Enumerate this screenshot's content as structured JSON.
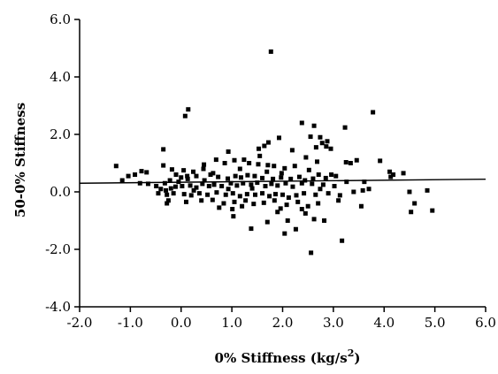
{
  "chart_data": {
    "type": "scatter",
    "title": "",
    "xlabel": "0% Stiffness (kg/s",
    "xlabel_superscript": "2",
    "xlabel_suffix": ")",
    "ylabel": "50-0% Stiffness",
    "xlim": [
      -2.0,
      6.0
    ],
    "ylim": [
      -4.0,
      6.0
    ],
    "x_ticks": [
      -2.0,
      -1.0,
      0.0,
      1.0,
      2.0,
      3.0,
      4.0,
      5.0,
      6.0
    ],
    "x_tick_labels": [
      "-2.0",
      "-1.0",
      "0.0",
      "1.0",
      "2.0",
      "3.0",
      "4.0",
      "5.0",
      "6.0"
    ],
    "y_ticks": [
      -4.0,
      -2.0,
      0.0,
      2.0,
      4.0,
      6.0
    ],
    "y_tick_labels": [
      "-4.0",
      "-2.0",
      "0.0",
      "2.0",
      "4.0",
      "6.0"
    ],
    "grid": false,
    "legend": "none",
    "marker": "square",
    "color": "#000000",
    "trend_line": {
      "x": [
        -2.0,
        6.0
      ],
      "y": [
        0.3,
        0.44
      ]
    },
    "points": [
      [
        1.77,
        4.88
      ],
      [
        0.14,
        2.87
      ],
      [
        0.08,
        2.64
      ],
      [
        3.78,
        2.77
      ],
      [
        2.38,
        2.4
      ],
      [
        3.23,
        2.24
      ],
      [
        2.62,
        2.3
      ],
      [
        1.93,
        1.88
      ],
      [
        2.74,
        1.9
      ],
      [
        2.55,
        1.92
      ],
      [
        2.88,
        1.76
      ],
      [
        2.78,
        1.7
      ],
      [
        2.86,
        1.58
      ],
      [
        2.66,
        1.55
      ],
      [
        -0.35,
        1.48
      ],
      [
        1.72,
        1.72
      ],
      [
        1.64,
        1.6
      ],
      [
        1.53,
        1.5
      ],
      [
        2.19,
        1.45
      ],
      [
        0.93,
        1.4
      ],
      [
        2.46,
        1.2
      ],
      [
        3.25,
        1.03
      ],
      [
        3.46,
        1.1
      ],
      [
        3.34,
        1.0
      ],
      [
        3.92,
        1.08
      ],
      [
        4.11,
        0.7
      ],
      [
        4.18,
        0.6
      ],
      [
        4.38,
        0.65
      ],
      [
        4.13,
        0.52
      ],
      [
        -1.28,
        0.9
      ],
      [
        -1.04,
        0.55
      ],
      [
        -0.91,
        0.6
      ],
      [
        -0.78,
        0.72
      ],
      [
        -0.68,
        0.68
      ],
      [
        -0.35,
        0.92
      ],
      [
        -0.18,
        0.78
      ],
      [
        0.05,
        0.75
      ],
      [
        0.24,
        0.7
      ],
      [
        0.44,
        0.8
      ],
      [
        0.69,
        1.12
      ],
      [
        0.86,
        1.0
      ],
      [
        1.05,
        1.1
      ],
      [
        1.24,
        1.12
      ],
      [
        1.34,
        1.0
      ],
      [
        1.52,
        0.96
      ],
      [
        1.71,
        0.93
      ],
      [
        1.83,
        0.9
      ],
      [
        2.04,
        0.82
      ],
      [
        2.24,
        0.9
      ],
      [
        2.52,
        0.76
      ],
      [
        2.71,
        0.6
      ],
      [
        2.96,
        0.6
      ],
      [
        3.05,
        0.55
      ],
      [
        3.61,
        0.35
      ],
      [
        -1.16,
        0.4
      ],
      [
        -0.81,
        0.3
      ],
      [
        -0.65,
        0.28
      ],
      [
        -0.49,
        0.2
      ],
      [
        -0.32,
        0.3
      ],
      [
        -0.22,
        0.4
      ],
      [
        -0.1,
        0.6
      ],
      [
        0.0,
        0.5
      ],
      [
        0.13,
        0.45
      ],
      [
        0.3,
        0.55
      ],
      [
        0.46,
        0.4
      ],
      [
        0.58,
        0.6
      ],
      [
        0.73,
        0.52
      ],
      [
        0.92,
        0.46
      ],
      [
        1.07,
        0.55
      ],
      [
        1.18,
        0.5
      ],
      [
        1.31,
        0.58
      ],
      [
        1.45,
        0.55
      ],
      [
        1.6,
        0.48
      ],
      [
        1.81,
        0.45
      ],
      [
        1.97,
        0.5
      ],
      [
        2.16,
        0.45
      ],
      [
        2.33,
        0.52
      ],
      [
        2.44,
        0.4
      ],
      [
        2.6,
        0.46
      ],
      [
        2.85,
        0.48
      ],
      [
        -0.4,
        0.1
      ],
      [
        -0.3,
        0.05
      ],
      [
        -0.2,
        0.12
      ],
      [
        -0.11,
        0.18
      ],
      [
        0.02,
        0.2
      ],
      [
        0.18,
        0.22
      ],
      [
        0.3,
        0.15
      ],
      [
        0.42,
        0.28
      ],
      [
        0.55,
        0.2
      ],
      [
        0.65,
        0.25
      ],
      [
        0.8,
        0.2
      ],
      [
        0.98,
        0.3
      ],
      [
        1.1,
        0.22
      ],
      [
        1.22,
        0.3
      ],
      [
        1.38,
        0.25
      ],
      [
        1.5,
        0.32
      ],
      [
        1.66,
        0.2
      ],
      [
        1.78,
        0.28
      ],
      [
        1.9,
        0.22
      ],
      [
        2.06,
        0.3
      ],
      [
        2.2,
        0.18
      ],
      [
        2.38,
        0.3
      ],
      [
        2.58,
        0.28
      ],
      [
        2.8,
        0.25
      ],
      [
        3.02,
        0.2
      ],
      [
        -0.45,
        -0.05
      ],
      [
        -0.28,
        -0.1
      ],
      [
        -0.15,
        -0.05
      ],
      [
        0.06,
        -0.08
      ],
      [
        0.2,
        -0.12
      ],
      [
        0.36,
        -0.05
      ],
      [
        0.52,
        -0.1
      ],
      [
        0.7,
        -0.02
      ],
      [
        0.88,
        -0.1
      ],
      [
        1.02,
        -0.05
      ],
      [
        1.16,
        -0.15
      ],
      [
        1.3,
        -0.08
      ],
      [
        1.46,
        -0.1
      ],
      [
        1.6,
        -0.05
      ],
      [
        1.74,
        -0.15
      ],
      [
        1.86,
        -0.08
      ],
      [
        2.0,
        -0.1
      ],
      [
        2.12,
        -0.2
      ],
      [
        2.27,
        -0.12
      ],
      [
        2.42,
        -0.05
      ],
      [
        2.65,
        -0.1
      ],
      [
        2.9,
        -0.05
      ],
      [
        3.13,
        -0.12
      ],
      [
        3.4,
        0.0
      ],
      [
        3.58,
        0.05
      ],
      [
        -0.25,
        -0.3
      ],
      [
        0.1,
        -0.35
      ],
      [
        0.4,
        -0.3
      ],
      [
        0.62,
        -0.28
      ],
      [
        0.84,
        -0.4
      ],
      [
        1.05,
        -0.35
      ],
      [
        1.27,
        -0.3
      ],
      [
        1.43,
        -0.42
      ],
      [
        1.63,
        -0.38
      ],
      [
        1.84,
        -0.3
      ],
      [
        2.08,
        -0.45
      ],
      [
        2.3,
        -0.35
      ],
      [
        2.5,
        -0.5
      ],
      [
        2.7,
        -0.4
      ],
      [
        3.1,
        -0.3
      ],
      [
        -0.28,
        -0.4
      ],
      [
        0.75,
        -0.55
      ],
      [
        1.01,
        -0.6
      ],
      [
        1.2,
        -0.5
      ],
      [
        1.96,
        -0.58
      ],
      [
        2.38,
        -0.6
      ],
      [
        3.55,
        -0.5
      ],
      [
        4.53,
        -0.7
      ],
      [
        4.6,
        -0.4
      ],
      [
        4.85,
        0.05
      ],
      [
        4.95,
        -0.65
      ],
      [
        4.5,
        0.0
      ],
      [
        3.7,
        0.1
      ],
      [
        1.03,
        -0.85
      ],
      [
        1.38,
        -1.28
      ],
      [
        1.7,
        -1.05
      ],
      [
        2.1,
        -1.0
      ],
      [
        2.62,
        -0.95
      ],
      [
        2.82,
        -1.0
      ],
      [
        2.04,
        -1.45
      ],
      [
        2.26,
        -1.3
      ],
      [
        3.17,
        -1.7
      ],
      [
        2.56,
        -2.12
      ],
      [
        1.9,
        -0.7
      ],
      [
        2.45,
        -0.75
      ],
      [
        0.45,
        0.95
      ],
      [
        0.12,
        0.55
      ],
      [
        -0.05,
        0.35
      ],
      [
        1.55,
        1.25
      ],
      [
        1.98,
        0.65
      ],
      [
        2.68,
        1.05
      ],
      [
        2.95,
        1.5
      ],
      [
        0.25,
        0.05
      ],
      [
        0.93,
        0.1
      ],
      [
        1.4,
        0.12
      ],
      [
        2.74,
        0.1
      ],
      [
        3.26,
        0.35
      ],
      [
        0.63,
        0.65
      ],
      [
        1.16,
        0.8
      ],
      [
        1.69,
        0.7
      ]
    ]
  }
}
